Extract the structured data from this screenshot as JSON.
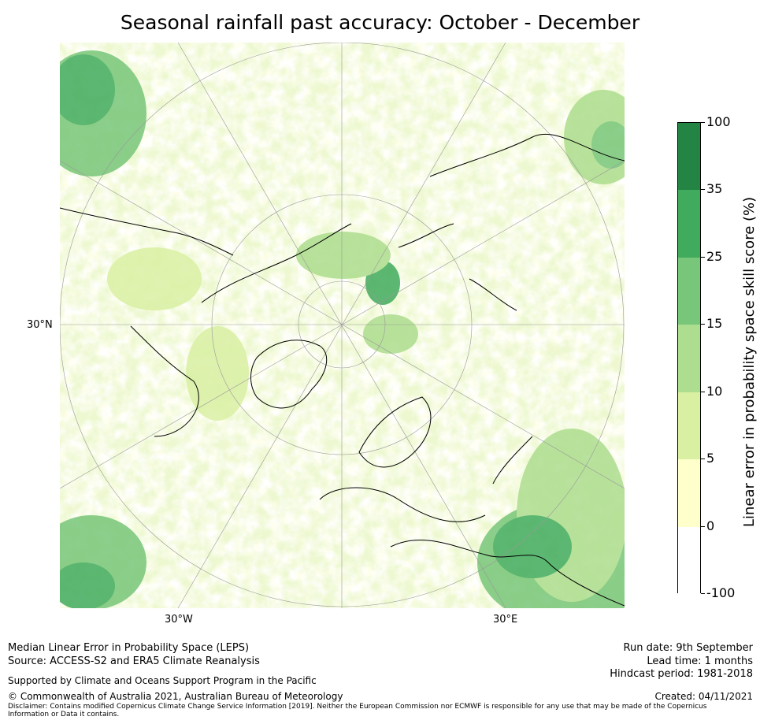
{
  "title": "Seasonal rainfall past accuracy: October - December",
  "map": {
    "lat_label": "30°N",
    "lon_labels": {
      "west": "30°W",
      "east": "30°E"
    },
    "projection": "north-polar-stereographic"
  },
  "colorbar": {
    "title": "Linear error in probability space skill score (%)",
    "ticks": [
      "100",
      "35",
      "25",
      "15",
      "10",
      "5",
      "0",
      "-100"
    ],
    "bins": [
      {
        "from": "35",
        "to": "100",
        "color": "#238443"
      },
      {
        "from": "25",
        "to": "35",
        "color": "#41ab5d"
      },
      {
        "from": "15",
        "to": "25",
        "color": "#78c679"
      },
      {
        "from": "10",
        "to": "15",
        "color": "#addd8e"
      },
      {
        "from": "5",
        "to": "10",
        "color": "#d9f0a3"
      },
      {
        "from": "0",
        "to": "5",
        "color": "#ffffcc"
      },
      {
        "from": "-100",
        "to": "0",
        "color": "#ffffff"
      }
    ]
  },
  "footer": {
    "line1": "Median Linear Error in Probability Space (LEPS)",
    "line2": "Source: ACCESS-S2 and ERA5 Climate Reanalysis",
    "support": "Supported by Climate and Oceans Support Program in the Pacific",
    "copyright": "© Commonwealth of Australia 2021, Australian Bureau of Meteorology",
    "disclaimer": "Disclaimer: Contains modified Copernicus Climate Change Service Information [2019]. Neither the European Commission nor ECMWF is responsible for any use that may be made of the Copernicus Information or Data it contains.",
    "run_date": "Run date: 9th September",
    "lead_time": "Lead time: 1 months",
    "hindcast": "Hindcast period: 1981-2018",
    "created": "Created: 04/11/2021"
  }
}
